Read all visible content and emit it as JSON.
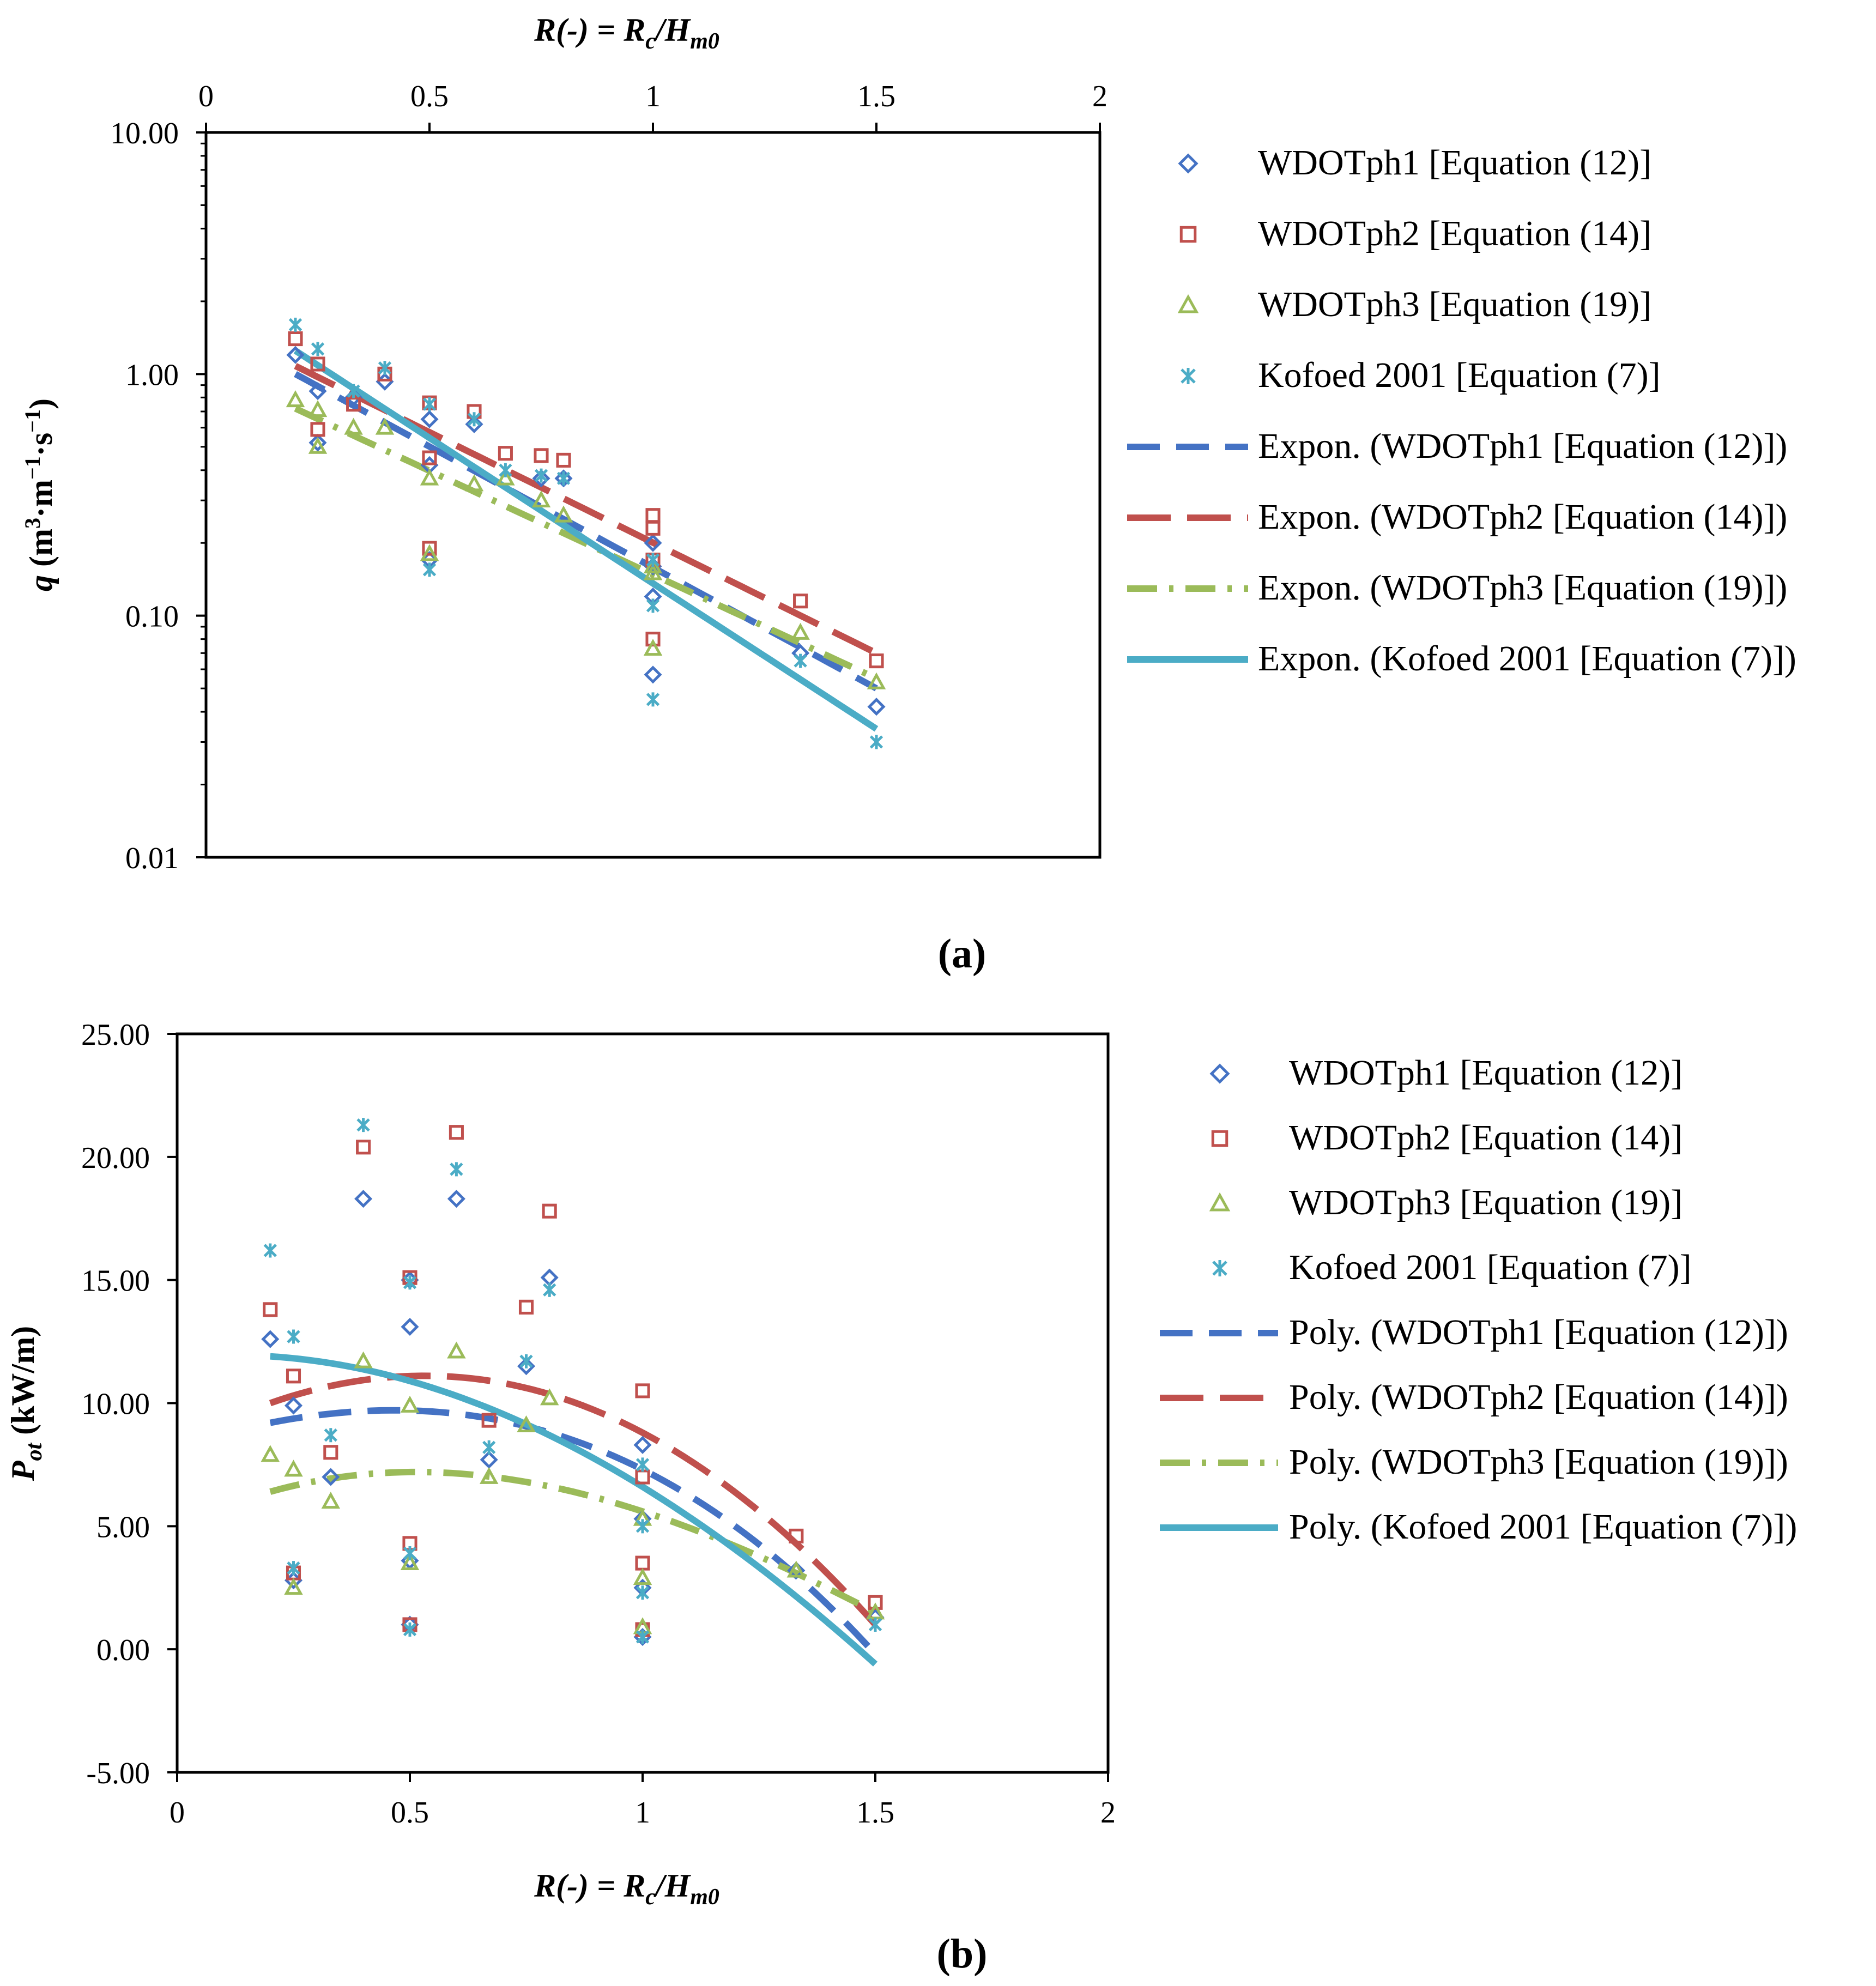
{
  "series_styles": [
    {
      "marker": "diamond",
      "color": "#4472C4"
    },
    {
      "marker": "square",
      "color": "#C0504D"
    },
    {
      "marker": "triangle",
      "color": "#9BBB59"
    },
    {
      "marker": "star",
      "color": "#4BACC6"
    }
  ],
  "chart_data": [
    {
      "type": "scatter",
      "panel_label": "(a)",
      "xlabel": "R(-) = Rc/Hm0",
      "xlabel_parts": {
        "r": "R",
        "paren": "(-) = ",
        "rc": "R",
        "rc_sub": "c",
        "slash": "/",
        "hm": "H",
        "hm_sub": "m0"
      },
      "ylabel": "q (m³·m⁻¹·s⁻¹)",
      "ylabel_parts": {
        "q": "q",
        "open": " (m",
        "m3": "3",
        "mid": "·m",
        "mm1": "−1",
        "dot": "·s",
        "sm1": "−1",
        "close": ")"
      },
      "x_axis_position": "top",
      "y_scale": "log",
      "xlim": [
        0,
        2
      ],
      "ylim": [
        0.01,
        10
      ],
      "x_ticks": [
        "0",
        "0.5",
        "1",
        "1.5",
        "2"
      ],
      "y_ticks": [
        "0.01",
        "0.10",
        "1.00",
        "10.00"
      ],
      "legend_position": "right",
      "series": [
        {
          "name": "WDOTph1 [Equation (12)]",
          "x": [
            0.2,
            0.25,
            0.25,
            0.33,
            0.4,
            0.5,
            0.5,
            0.5,
            0.6,
            0.75,
            0.8,
            1.0,
            1.0,
            1.0,
            1.0,
            1.33,
            1.5
          ],
          "y": [
            1.2,
            0.85,
            0.52,
            0.8,
            0.93,
            0.65,
            0.17,
            0.42,
            0.62,
            0.37,
            0.37,
            0.2,
            0.16,
            0.12,
            0.057,
            0.07,
            0.042
          ]
        },
        {
          "name": "WDOTph2 [Equation (14)]",
          "x": [
            0.2,
            0.25,
            0.25,
            0.33,
            0.4,
            0.5,
            0.5,
            0.5,
            0.6,
            0.67,
            0.75,
            0.8,
            1.0,
            1.0,
            1.0,
            1.0,
            1.33,
            1.5
          ],
          "y": [
            1.4,
            1.1,
            0.59,
            0.75,
            1.0,
            0.76,
            0.19,
            0.45,
            0.7,
            0.47,
            0.46,
            0.44,
            0.26,
            0.23,
            0.17,
            0.08,
            0.115,
            0.065
          ]
        },
        {
          "name": "WDOTph3 [Equation (19)]",
          "x": [
            0.2,
            0.25,
            0.25,
            0.33,
            0.4,
            0.5,
            0.5,
            0.6,
            0.67,
            0.75,
            0.8,
            1.0,
            1.0,
            1.0,
            1.33,
            1.5
          ],
          "y": [
            0.78,
            0.71,
            0.5,
            0.6,
            0.6,
            0.37,
            0.18,
            0.35,
            0.37,
            0.3,
            0.26,
            0.16,
            0.15,
            0.073,
            0.085,
            0.053
          ]
        },
        {
          "name": "Kofoed 2001 [Equation (7)]",
          "x": [
            0.2,
            0.25,
            0.33,
            0.4,
            0.5,
            0.5,
            0.6,
            0.67,
            0.75,
            0.8,
            1.0,
            1.0,
            1.0,
            1.33,
            1.5
          ],
          "y": [
            1.6,
            1.27,
            0.85,
            1.06,
            0.75,
            0.155,
            0.65,
            0.4,
            0.38,
            0.37,
            0.17,
            0.11,
            0.045,
            0.065,
            0.03
          ]
        }
      ],
      "trendlines": [
        {
          "name": "Expon. (WDOTph1 [Equation (12)])",
          "kind": "exponential",
          "x_range": [
            0.2,
            1.5
          ],
          "y_endpoints": [
            1.0,
            0.05
          ]
        },
        {
          "name": "Expon. (WDOTph2 [Equation (14)])",
          "kind": "exponential",
          "x_range": [
            0.2,
            1.5
          ],
          "y_endpoints": [
            1.08,
            0.07
          ]
        },
        {
          "name": "Expon. (WDOTph3 [Equation (19)])",
          "kind": "exponential",
          "x_range": [
            0.2,
            1.5
          ],
          "y_endpoints": [
            0.72,
            0.055
          ]
        },
        {
          "name": "Expon. (Kofoed 2001 [Equation (7)])",
          "kind": "exponential",
          "x_range": [
            0.2,
            1.5
          ],
          "y_endpoints": [
            1.25,
            0.034
          ]
        }
      ]
    },
    {
      "type": "scatter",
      "panel_label": "(b)",
      "xlabel": "R(-) = Rc/Hm0",
      "xlabel_parts": {
        "r": "R",
        "paren": "(-) = ",
        "rc": "R",
        "rc_sub": "c",
        "slash": "/",
        "hm": "H",
        "hm_sub": "m0"
      },
      "ylabel": "Pot (kW/m)",
      "ylabel_parts": {
        "p": "P",
        "sub": "ot",
        "rest": " (kW/m)"
      },
      "x_axis_position": "bottom",
      "y_scale": "linear",
      "xlim": [
        0,
        2
      ],
      "ylim": [
        -5,
        25
      ],
      "x_ticks": [
        "0",
        "0.5",
        "1",
        "1.5",
        "2"
      ],
      "y_ticks": [
        "-5.00",
        "0.00",
        "5.00",
        "10.00",
        "15.00",
        "20.00",
        "25.00"
      ],
      "legend_position": "right",
      "series": [
        {
          "name": "WDOTph1 [Equation (12)]",
          "x": [
            0.2,
            0.25,
            0.25,
            0.33,
            0.4,
            0.5,
            0.5,
            0.5,
            0.5,
            0.6,
            0.67,
            0.75,
            0.8,
            1.0,
            1.0,
            1.0,
            1.0,
            1.33,
            1.5
          ],
          "y": [
            12.6,
            9.9,
            2.8,
            7.0,
            18.3,
            13.1,
            3.6,
            1.0,
            15.0,
            18.3,
            7.7,
            11.5,
            15.1,
            8.3,
            5.3,
            2.5,
            0.5,
            3.2,
            1.3
          ]
        },
        {
          "name": "WDOTph2 [Equation (14)]",
          "x": [
            0.2,
            0.25,
            0.25,
            0.33,
            0.4,
            0.5,
            0.5,
            0.5,
            0.6,
            0.67,
            0.75,
            0.8,
            1.0,
            1.0,
            1.0,
            1.0,
            1.33,
            1.5
          ],
          "y": [
            13.8,
            11.1,
            3.1,
            8.0,
            20.4,
            15.1,
            4.3,
            1.0,
            21.0,
            9.3,
            13.9,
            17.8,
            10.5,
            7.0,
            3.5,
            0.8,
            4.6,
            1.9
          ]
        },
        {
          "name": "WDOTph3 [Equation (19)]",
          "x": [
            0.2,
            0.25,
            0.25,
            0.33,
            0.4,
            0.5,
            0.5,
            0.6,
            0.67,
            0.75,
            0.8,
            1.0,
            1.0,
            1.0,
            1.33,
            1.5
          ],
          "y": [
            7.9,
            7.3,
            2.5,
            6.0,
            11.7,
            9.9,
            3.5,
            12.1,
            7.0,
            9.1,
            10.2,
            5.3,
            2.9,
            0.9,
            3.2,
            1.5
          ]
        },
        {
          "name": "Kofoed 2001 [Equation (7)]",
          "x": [
            0.2,
            0.25,
            0.25,
            0.33,
            0.4,
            0.5,
            0.5,
            0.5,
            0.6,
            0.67,
            0.75,
            0.8,
            1.0,
            1.0,
            1.0,
            1.0,
            1.5
          ],
          "y": [
            16.2,
            12.7,
            3.3,
            8.7,
            21.3,
            14.9,
            3.9,
            0.8,
            19.5,
            8.2,
            11.7,
            14.6,
            7.5,
            5.0,
            2.3,
            0.5,
            1.0
          ]
        }
      ],
      "trendlines": [
        {
          "name": "Poly. (WDOTph1 [Equation (12)])",
          "kind": "polynomial",
          "x": [
            0.2,
            0.5,
            1.0,
            1.5
          ],
          "y": [
            9.2,
            9.7,
            7.3,
            -0.2
          ]
        },
        {
          "name": "Poly. (WDOTph2 [Equation (14)])",
          "kind": "polynomial",
          "x": [
            0.2,
            0.5,
            1.0,
            1.5
          ],
          "y": [
            10.0,
            11.1,
            8.8,
            1.0
          ]
        },
        {
          "name": "Poly. (WDOTph3 [Equation (19)])",
          "kind": "polynomial",
          "x": [
            0.2,
            0.5,
            1.0,
            1.5
          ],
          "y": [
            6.4,
            7.2,
            5.6,
            1.5
          ]
        },
        {
          "name": "Poly. (Kofoed 2001 [Equation (7)])",
          "kind": "polynomial",
          "x": [
            0.2,
            0.5,
            1.0,
            1.5
          ],
          "y": [
            11.9,
            10.9,
            6.6,
            -0.6
          ]
        }
      ]
    }
  ]
}
